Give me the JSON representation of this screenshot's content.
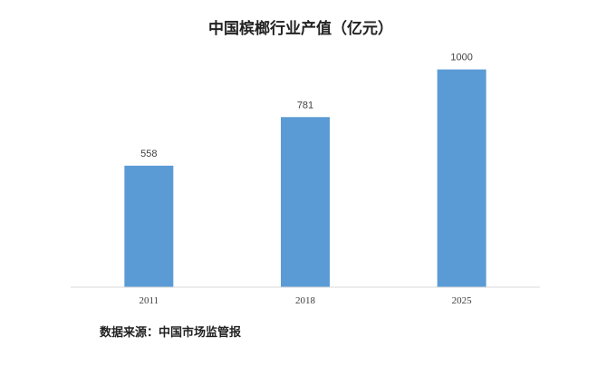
{
  "chart_data": {
    "type": "bar",
    "title": "中国槟榔行业产值（亿元）",
    "categories": [
      "2011",
      "2018",
      "2025"
    ],
    "values": [
      558,
      781,
      1000
    ],
    "value_labels": [
      "558",
      "781",
      "1000"
    ],
    "xlabel": "",
    "ylabel": "",
    "ylim": [
      0,
      1090
    ],
    "grid": false,
    "legend": "none",
    "bar_color": "#5b9bd5",
    "axis_color": "#d9d9d9"
  },
  "footer": {
    "source": "数据来源：中国市场监管报"
  }
}
